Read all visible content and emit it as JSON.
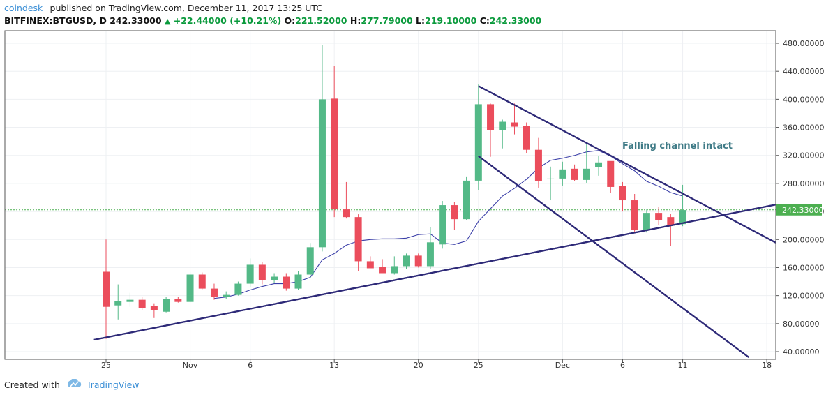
{
  "header": {
    "author": "coindesk_",
    "published": "published on TradingView.com, December 11, 2017 13:25 UTC",
    "symbol": "BITFINEX:BTGUSD, D",
    "last": "242.33000",
    "change": "+22.44000 (+10.21%)",
    "o_label": "O:",
    "o": "221.52000",
    "h_label": "H:",
    "h": "277.79000",
    "l_label": "L:",
    "l": "219.10000",
    "c_label": "C:",
    "c": "242.33000"
  },
  "footer": {
    "created_with": "Created with",
    "brand": "TradingView"
  },
  "colors": {
    "up": "#53b987",
    "down": "#eb4d5c",
    "ma": "#3b3fa8",
    "trend": "#2e2a78",
    "annotation": "#3e7a86",
    "price_tag": "#4caf50"
  },
  "chart_data": {
    "type": "candlestick",
    "symbol": "BITFINEX:BTGUSD",
    "ylim": [
      30,
      490
    ],
    "yticks": [
      "40.00000",
      "80.00000",
      "120.00000",
      "160.00000",
      "200.00000",
      "240.00000",
      "280.00000",
      "320.00000",
      "360.00000",
      "400.00000",
      "440.00000",
      "480.00000"
    ],
    "ytick_values": [
      40,
      80,
      120,
      160,
      200,
      240,
      280,
      320,
      360,
      400,
      440,
      480
    ],
    "xtick_labels": [
      "25",
      "Nov",
      "6",
      "13",
      "20",
      "25",
      "Dec",
      "6",
      "11",
      "18"
    ],
    "xtick_days": [
      0,
      7,
      12,
      19,
      26,
      31,
      38,
      43,
      48,
      55
    ],
    "x_range_days": [
      -1.7,
      56.7
    ],
    "last_price_label": "242.33000",
    "last_price": 242.33,
    "annotation": "Falling channel intact",
    "candles": [
      {
        "d": 0,
        "o": 154,
        "h": 200,
        "l": 58,
        "c": 104
      },
      {
        "d": 1,
        "o": 106,
        "h": 136,
        "l": 86,
        "c": 112
      },
      {
        "d": 2,
        "o": 111,
        "h": 124,
        "l": 104,
        "c": 114
      },
      {
        "d": 3,
        "o": 114,
        "h": 118,
        "l": 99,
        "c": 102
      },
      {
        "d": 4,
        "o": 105,
        "h": 109,
        "l": 88,
        "c": 99
      },
      {
        "d": 5,
        "o": 97,
        "h": 118,
        "l": 96,
        "c": 115
      },
      {
        "d": 6,
        "o": 115,
        "h": 118,
        "l": 110,
        "c": 111
      },
      {
        "d": 7,
        "o": 111,
        "h": 154,
        "l": 110,
        "c": 150
      },
      {
        "d": 8,
        "o": 150,
        "h": 153,
        "l": 129,
        "c": 130
      },
      {
        "d": 9,
        "o": 130,
        "h": 137,
        "l": 114,
        "c": 118
      },
      {
        "d": 10,
        "o": 118,
        "h": 126,
        "l": 115,
        "c": 121
      },
      {
        "d": 11,
        "o": 121,
        "h": 140,
        "l": 120,
        "c": 137
      },
      {
        "d": 12,
        "o": 137,
        "h": 173,
        "l": 132,
        "c": 164
      },
      {
        "d": 13,
        "o": 164,
        "h": 168,
        "l": 136,
        "c": 142
      },
      {
        "d": 14,
        "o": 142,
        "h": 152,
        "l": 138,
        "c": 147
      },
      {
        "d": 15,
        "o": 147,
        "h": 152,
        "l": 127,
        "c": 130
      },
      {
        "d": 16,
        "o": 130,
        "h": 155,
        "l": 128,
        "c": 150
      },
      {
        "d": 17,
        "o": 150,
        "h": 195,
        "l": 145,
        "c": 189
      },
      {
        "d": 18,
        "o": 189,
        "h": 478,
        "l": 183,
        "c": 400
      },
      {
        "d": 19,
        "o": 401,
        "h": 448,
        "l": 232,
        "c": 244
      },
      {
        "d": 20,
        "o": 243,
        "h": 282,
        "l": 230,
        "c": 232
      },
      {
        "d": 21,
        "o": 232,
        "h": 236,
        "l": 155,
        "c": 169
      },
      {
        "d": 22,
        "o": 169,
        "h": 176,
        "l": 160,
        "c": 159
      },
      {
        "d": 23,
        "o": 161,
        "h": 172,
        "l": 152,
        "c": 152
      },
      {
        "d": 24,
        "o": 152,
        "h": 176,
        "l": 150,
        "c": 162
      },
      {
        "d": 25,
        "o": 162,
        "h": 180,
        "l": 158,
        "c": 177
      },
      {
        "d": 26,
        "o": 177,
        "h": 180,
        "l": 160,
        "c": 162
      },
      {
        "d": 27,
        "o": 162,
        "h": 218,
        "l": 158,
        "c": 196
      },
      {
        "d": 28,
        "o": 193,
        "h": 255,
        "l": 187,
        "c": 249
      },
      {
        "d": 29,
        "o": 249,
        "h": 254,
        "l": 214,
        "c": 229
      },
      {
        "d": 30,
        "o": 229,
        "h": 290,
        "l": 228,
        "c": 284
      },
      {
        "d": 31,
        "o": 284,
        "h": 421,
        "l": 271,
        "c": 393
      },
      {
        "d": 32,
        "o": 393,
        "h": 394,
        "l": 318,
        "c": 356
      },
      {
        "d": 33,
        "o": 356,
        "h": 371,
        "l": 330,
        "c": 368
      },
      {
        "d": 34,
        "o": 367,
        "h": 394,
        "l": 350,
        "c": 361
      },
      {
        "d": 35,
        "o": 362,
        "h": 367,
        "l": 323,
        "c": 328
      },
      {
        "d": 36,
        "o": 328,
        "h": 345,
        "l": 274,
        "c": 283
      },
      {
        "d": 37,
        "o": 287,
        "h": 304,
        "l": 256,
        "c": 287
      },
      {
        "d": 38,
        "o": 287,
        "h": 311,
        "l": 277,
        "c": 300
      },
      {
        "d": 39,
        "o": 301,
        "h": 307,
        "l": 283,
        "c": 285
      },
      {
        "d": 40,
        "o": 285,
        "h": 339,
        "l": 281,
        "c": 301
      },
      {
        "d": 41,
        "o": 303,
        "h": 319,
        "l": 291,
        "c": 310
      },
      {
        "d": 42,
        "o": 312,
        "h": 311,
        "l": 266,
        "c": 275
      },
      {
        "d": 43,
        "o": 276,
        "h": 282,
        "l": 240,
        "c": 256
      },
      {
        "d": 44,
        "o": 256,
        "h": 265,
        "l": 209,
        "c": 214
      },
      {
        "d": 45,
        "o": 214,
        "h": 243,
        "l": 210,
        "c": 238
      },
      {
        "d": 46,
        "o": 238,
        "h": 247,
        "l": 221,
        "c": 228
      },
      {
        "d": 47,
        "o": 232,
        "h": 237,
        "l": 191,
        "c": 221
      },
      {
        "d": 48,
        "o": 222,
        "h": 278,
        "l": 219,
        "c": 242
      }
    ],
    "moving_average": [
      {
        "d": 9,
        "v": 116
      },
      {
        "d": 10,
        "v": 118
      },
      {
        "d": 11,
        "v": 122
      },
      {
        "d": 12,
        "v": 128
      },
      {
        "d": 13,
        "v": 133
      },
      {
        "d": 14,
        "v": 137
      },
      {
        "d": 15,
        "v": 137
      },
      {
        "d": 16,
        "v": 140
      },
      {
        "d": 17,
        "v": 146
      },
      {
        "d": 18,
        "v": 171
      },
      {
        "d": 19,
        "v": 180
      },
      {
        "d": 20,
        "v": 192
      },
      {
        "d": 21,
        "v": 198
      },
      {
        "d": 22,
        "v": 200
      },
      {
        "d": 23,
        "v": 201
      },
      {
        "d": 24,
        "v": 201
      },
      {
        "d": 25,
        "v": 202
      },
      {
        "d": 26,
        "v": 207
      },
      {
        "d": 27,
        "v": 208
      },
      {
        "d": 28,
        "v": 195
      },
      {
        "d": 29,
        "v": 193
      },
      {
        "d": 30,
        "v": 198
      },
      {
        "d": 31,
        "v": 226
      },
      {
        "d": 32,
        "v": 244
      },
      {
        "d": 33,
        "v": 262
      },
      {
        "d": 34,
        "v": 273
      },
      {
        "d": 35,
        "v": 286
      },
      {
        "d": 36,
        "v": 302
      },
      {
        "d": 37,
        "v": 313
      },
      {
        "d": 38,
        "v": 316
      },
      {
        "d": 39,
        "v": 320
      },
      {
        "d": 40,
        "v": 325
      },
      {
        "d": 41,
        "v": 327
      },
      {
        "d": 42,
        "v": 319
      },
      {
        "d": 43,
        "v": 308
      },
      {
        "d": 44,
        "v": 298
      },
      {
        "d": 45,
        "v": 283
      },
      {
        "d": 46,
        "v": 276
      },
      {
        "d": 47,
        "v": 267
      },
      {
        "d": 48,
        "v": 262
      }
    ],
    "trendlines": [
      {
        "name": "support",
        "d1": -1.0,
        "v1": 57,
        "d2": 56.7,
        "v2": 253
      },
      {
        "name": "channel-upper",
        "d1": 31.0,
        "v1": 419,
        "d2": 56.7,
        "v2": 187
      },
      {
        "name": "channel-lower",
        "d1": 31.0,
        "v1": 319,
        "d2": 53.5,
        "v2": 32
      }
    ]
  }
}
